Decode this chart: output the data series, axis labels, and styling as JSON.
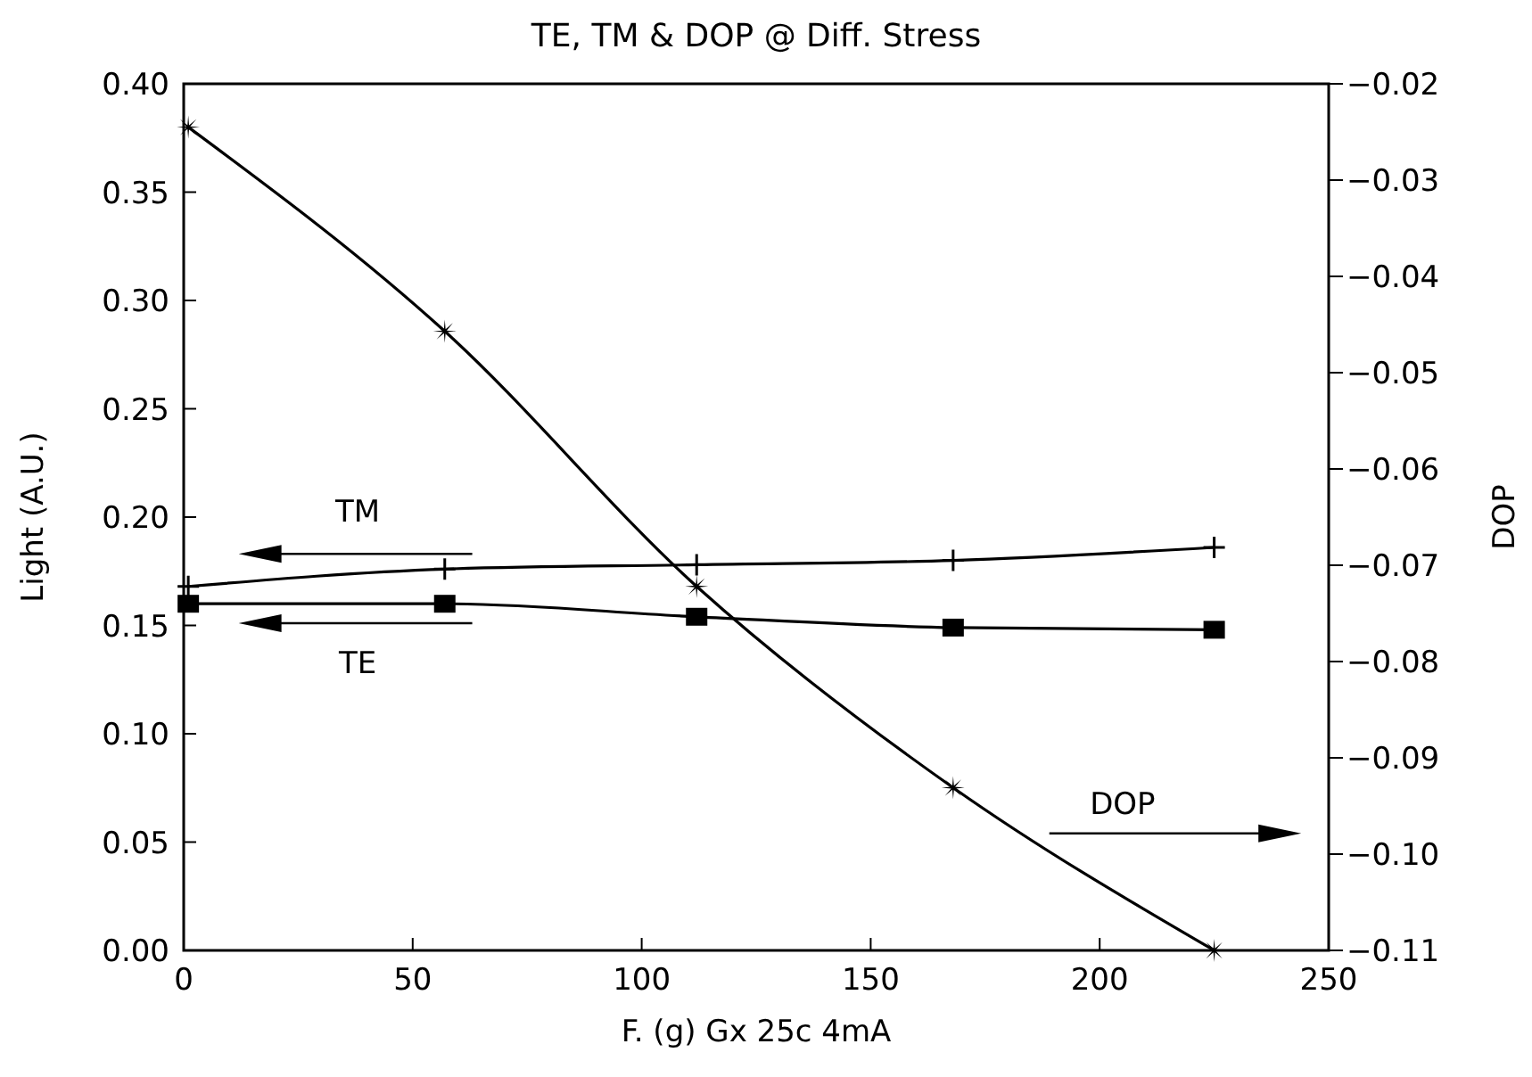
{
  "chart_data": {
    "type": "line",
    "title": "TE,  TM & DOP @ Diff. Stress",
    "xlabel": "F.  (g) Gx 25c 4mA",
    "ylabel": "Light (A.U.)",
    "y2label": "DOP",
    "x": [
      1,
      57,
      112,
      168,
      225
    ],
    "series": [
      {
        "name": "TM",
        "color": "#000000",
        "marker": "cross",
        "axis": "y",
        "values": [
          0.168,
          0.176,
          0.178,
          0.18,
          0.186
        ]
      },
      {
        "name": "TE",
        "color": "#000000",
        "marker": "square",
        "axis": "y",
        "values": [
          0.16,
          0.16,
          0.154,
          0.149,
          0.148
        ]
      },
      {
        "name": "DOP",
        "color": "#000000",
        "marker": "star",
        "axis": "y2",
        "values": [
          -0.0245,
          -0.0457,
          -0.0722,
          -0.0931,
          -0.11
        ]
      }
    ],
    "xlim": [
      0,
      250
    ],
    "xticks": [
      0,
      50,
      100,
      150,
      200,
      250
    ],
    "ylim": [
      0,
      0.4
    ],
    "yticks": [
      {
        "value": 0,
        "label": "0.00"
      },
      {
        "value": 0.05,
        "label": "0.05"
      },
      {
        "value": 0.1,
        "label": "0.10"
      },
      {
        "value": 0.15,
        "label": "0.15"
      },
      {
        "value": 0.2,
        "label": "0.20"
      },
      {
        "value": 0.25,
        "label": "0.25"
      },
      {
        "value": 0.3,
        "label": "0.30"
      },
      {
        "value": 0.35,
        "label": "0.35"
      },
      {
        "value": 0.4,
        "label": "0.40"
      }
    ],
    "y2lim": [
      -0.11,
      -0.02
    ],
    "y2ticks": [
      {
        "value": -0.11,
        "label": "−0.11"
      },
      {
        "value": -0.1,
        "label": "−0.10"
      },
      {
        "value": -0.09,
        "label": "−0.09"
      },
      {
        "value": -0.08,
        "label": "−0.08"
      },
      {
        "value": -0.07,
        "label": "−0.07"
      },
      {
        "value": -0.06,
        "label": "−0.06"
      },
      {
        "value": -0.05,
        "label": "−0.05"
      },
      {
        "value": -0.04,
        "label": "−0.04"
      },
      {
        "value": -0.03,
        "label": "−0.03"
      },
      {
        "value": -0.02,
        "label": "−0.02"
      }
    ],
    "grid": false,
    "line_style": "solid"
  }
}
